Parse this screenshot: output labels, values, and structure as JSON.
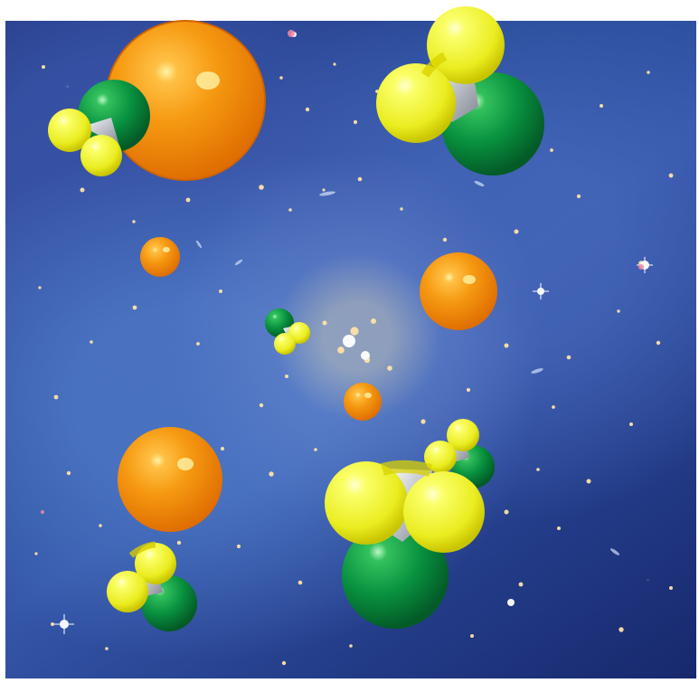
{
  "palette": {
    "background": "#ffffff",
    "space_primary": "#294c9a",
    "space_dark": "#17286d",
    "orange_sphere": "#f18a00",
    "yellow_sphere": "#f1f33a",
    "green_sphere": "#078a3d",
    "gray_connector": "#b7b9bd"
  },
  "scene": {
    "subject": "",
    "objects": [
      "orange-sphere",
      "molecule-cluster"
    ]
  }
}
